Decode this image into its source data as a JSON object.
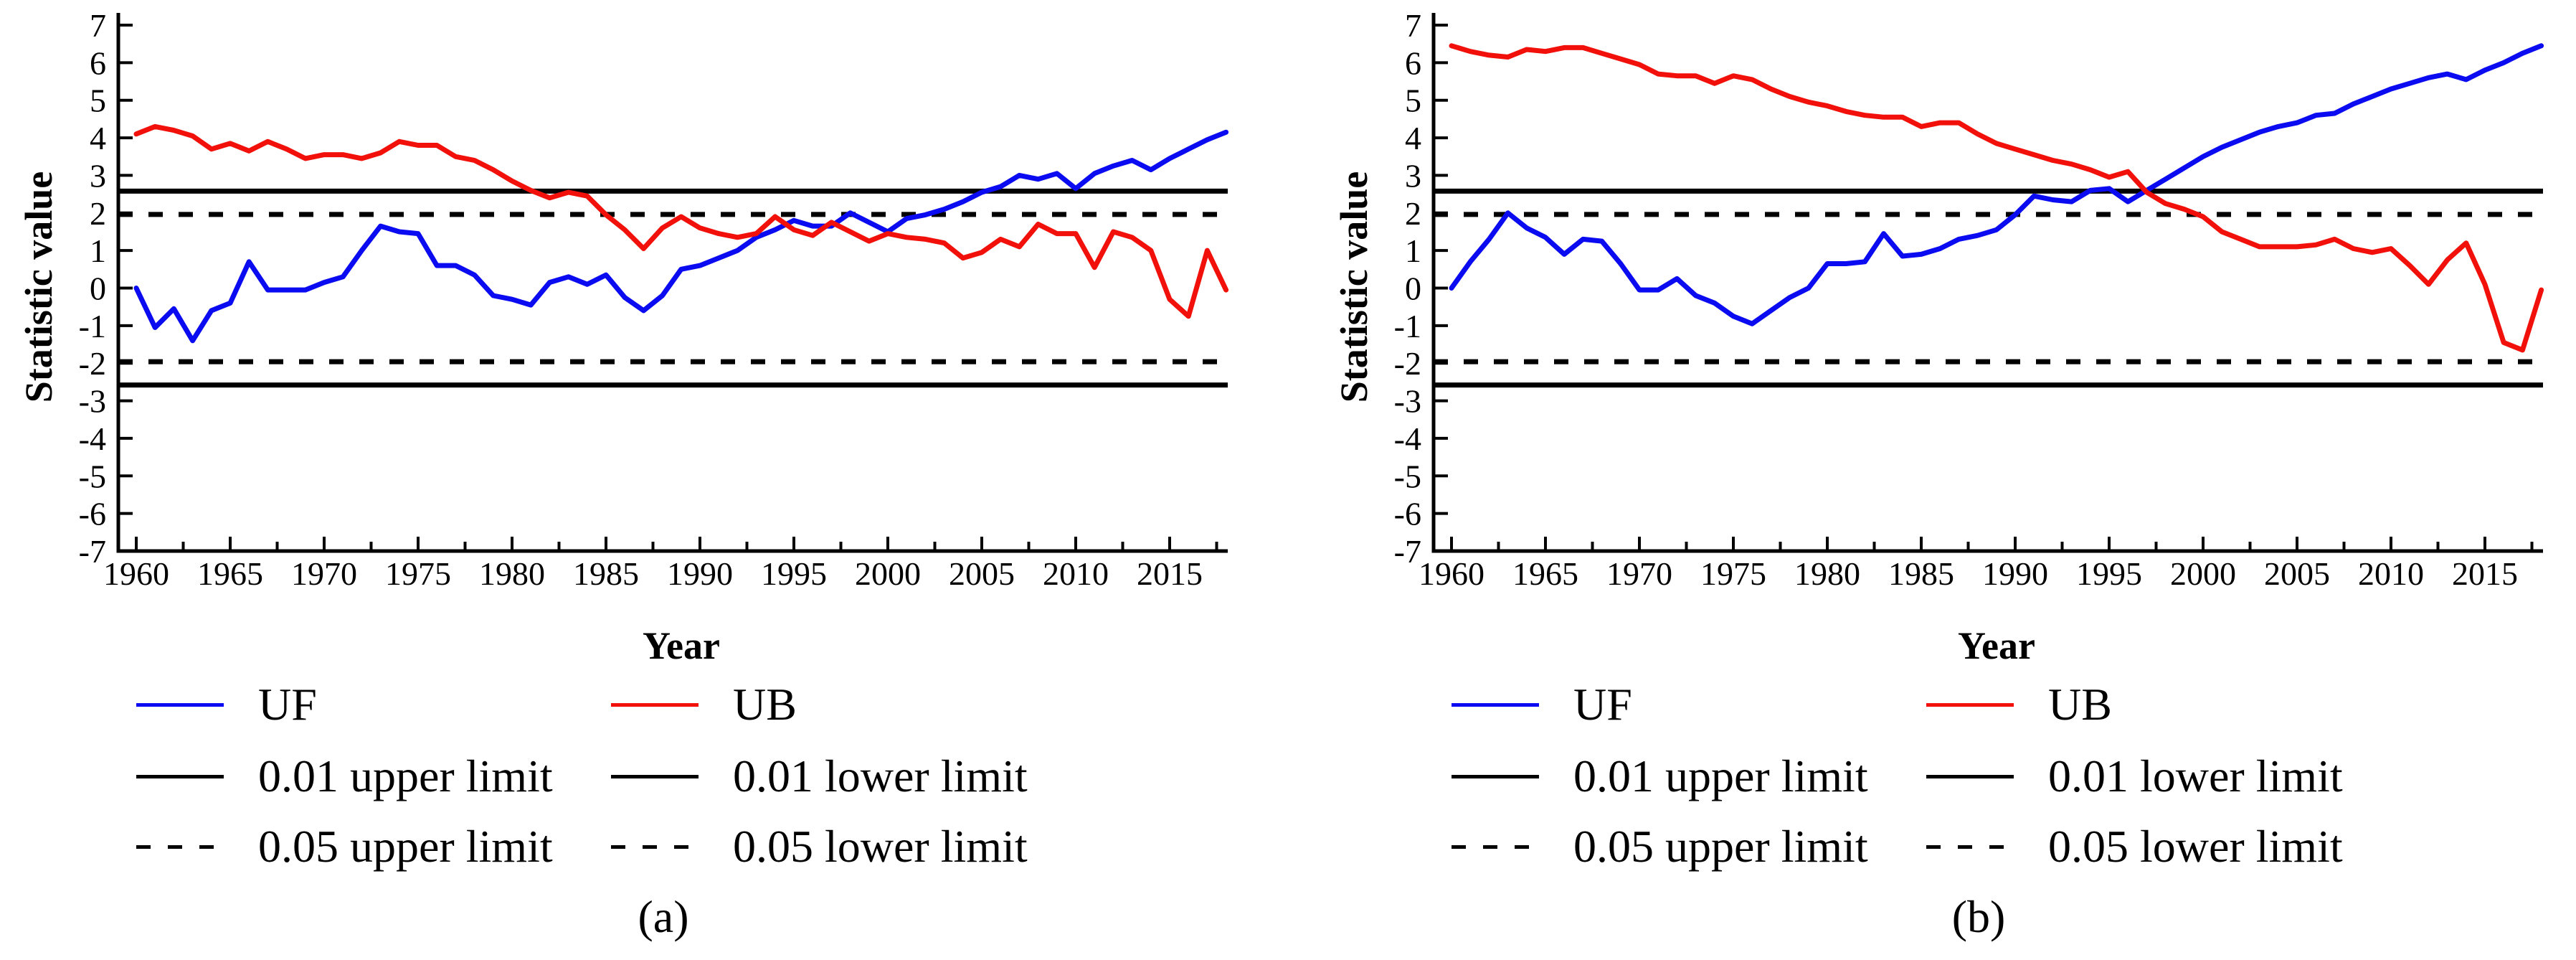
{
  "figure_type": "dual-line-chart",
  "colors": {
    "uf": "#0b0bf2",
    "ub": "#f2100b",
    "limit": "#000000",
    "background": "#ffffff"
  },
  "axes": {
    "xlabel": "Year",
    "ylabel": "Statistic value",
    "ymin": -7,
    "ymax": 7,
    "ytick_step": 1,
    "xticks": [
      1960,
      1965,
      1970,
      1975,
      1980,
      1985,
      1990,
      1995,
      2000,
      2005,
      2010,
      2015
    ],
    "grid": false
  },
  "legend": {
    "position": "below-chart",
    "uf": "UF",
    "ub": "UB",
    "upper001": "0.01 upper limit",
    "lower001": "0.01 lower limit",
    "upper005": "0.05 upper limit",
    "lower005": "0.05 lower limit"
  },
  "captions": [
    "(a)",
    "(b)"
  ],
  "chart_data": [
    {
      "type": "line",
      "caption": "(a)",
      "xlabel": "Year",
      "ylabel": "Statistic value",
      "ylim": [
        -7,
        7
      ],
      "x_start": 1960,
      "x_end": 2018,
      "x_step": 1,
      "limits": [
        {
          "label": "0.01 upper limit",
          "value": 2.58,
          "style": "solid"
        },
        {
          "label": "0.05 upper limit",
          "value": 1.96,
          "style": "dash"
        },
        {
          "label": "0.05 lower limit",
          "value": -1.96,
          "style": "dash"
        },
        {
          "label": "0.01 lower limit",
          "value": -2.58,
          "style": "solid"
        }
      ],
      "series": [
        {
          "name": "UF",
          "color_key": "uf",
          "values": [
            0,
            -1.05,
            -0.55,
            -1.4,
            -0.6,
            -0.4,
            0.7,
            -0.05,
            -0.05,
            -0.05,
            0.15,
            0.3,
            1.0,
            1.65,
            1.5,
            1.45,
            0.6,
            0.6,
            0.35,
            -0.2,
            -0.3,
            -0.45,
            0.15,
            0.3,
            0.1,
            0.35,
            -0.25,
            -0.6,
            -0.2,
            0.5,
            0.6,
            0.8,
            1.0,
            1.35,
            1.55,
            1.8,
            1.65,
            1.65,
            2.0,
            1.75,
            1.5,
            1.85,
            1.95,
            2.1,
            2.3,
            2.55,
            2.7,
            3.0,
            2.9,
            3.05,
            2.65,
            3.05,
            3.25,
            3.4,
            3.15,
            3.45,
            3.7,
            3.95,
            4.15
          ]
        },
        {
          "name": "UB",
          "color_key": "ub",
          "values": [
            4.1,
            4.3,
            4.2,
            4.05,
            3.7,
            3.85,
            3.65,
            3.9,
            3.7,
            3.45,
            3.55,
            3.55,
            3.45,
            3.6,
            3.9,
            3.8,
            3.8,
            3.5,
            3.4,
            3.15,
            2.85,
            2.6,
            2.4,
            2.55,
            2.45,
            1.95,
            1.55,
            1.05,
            1.6,
            1.9,
            1.6,
            1.45,
            1.35,
            1.45,
            1.9,
            1.55,
            1.4,
            1.75,
            1.5,
            1.25,
            1.45,
            1.35,
            1.3,
            1.2,
            0.8,
            0.95,
            1.3,
            1.1,
            1.7,
            1.45,
            1.45,
            0.55,
            1.5,
            1.35,
            1.0,
            -0.3,
            -0.75,
            1.0,
            -0.05
          ]
        }
      ]
    },
    {
      "type": "line",
      "caption": "(b)",
      "xlabel": "Year",
      "ylabel": "Statistic value",
      "ylim": [
        -7,
        7
      ],
      "x_start": 1960,
      "x_end": 2018,
      "x_step": 1,
      "limits": [
        {
          "label": "0.01 upper limit",
          "value": 2.58,
          "style": "solid"
        },
        {
          "label": "0.05 upper limit",
          "value": 1.96,
          "style": "dash"
        },
        {
          "label": "0.05 lower limit",
          "value": -1.96,
          "style": "dash"
        },
        {
          "label": "0.01 lower limit",
          "value": -2.58,
          "style": "solid"
        }
      ],
      "series": [
        {
          "name": "UF",
          "color_key": "uf",
          "values": [
            0,
            0.7,
            1.3,
            2.0,
            1.6,
            1.35,
            0.9,
            1.3,
            1.25,
            0.65,
            -0.05,
            -0.05,
            0.25,
            -0.2,
            -0.4,
            -0.75,
            -0.95,
            -0.6,
            -0.25,
            0.0,
            0.65,
            0.65,
            0.7,
            1.45,
            0.85,
            0.9,
            1.05,
            1.3,
            1.4,
            1.55,
            1.95,
            2.45,
            2.35,
            2.3,
            2.6,
            2.65,
            2.3,
            2.6,
            2.9,
            3.2,
            3.5,
            3.75,
            3.95,
            4.15,
            4.3,
            4.4,
            4.6,
            4.65,
            4.9,
            5.1,
            5.3,
            5.45,
            5.6,
            5.7,
            5.55,
            5.8,
            6.0,
            6.25,
            6.45
          ]
        },
        {
          "name": "UB",
          "color_key": "ub",
          "values": [
            6.45,
            6.3,
            6.2,
            6.15,
            6.35,
            6.3,
            6.4,
            6.4,
            6.25,
            6.1,
            5.95,
            5.7,
            5.65,
            5.65,
            5.45,
            5.65,
            5.55,
            5.3,
            5.1,
            4.95,
            4.85,
            4.7,
            4.6,
            4.55,
            4.55,
            4.3,
            4.4,
            4.4,
            4.1,
            3.85,
            3.7,
            3.55,
            3.4,
            3.3,
            3.15,
            2.95,
            3.1,
            2.55,
            2.25,
            2.1,
            1.9,
            1.5,
            1.3,
            1.1,
            1.1,
            1.1,
            1.15,
            1.3,
            1.05,
            0.95,
            1.05,
            0.6,
            0.1,
            0.75,
            1.2,
            0.1,
            -1.45,
            -1.65,
            -0.05
          ]
        }
      ]
    }
  ]
}
